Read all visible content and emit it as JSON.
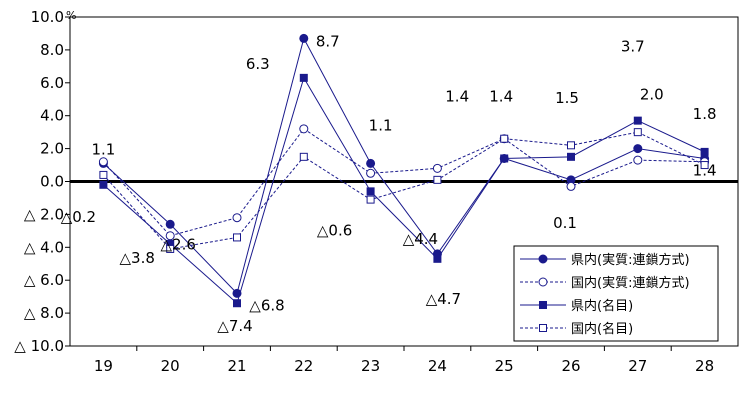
{
  "chart_data": {
    "type": "line",
    "title": "",
    "xlabel": "",
    "ylabel": "",
    "y_unit": "%",
    "categories": [
      "19",
      "20",
      "21",
      "22",
      "23",
      "24",
      "25",
      "26",
      "27",
      "28"
    ],
    "y_ticks": [
      {
        "value": 10,
        "label": "10.0"
      },
      {
        "value": 8,
        "label": "8.0"
      },
      {
        "value": 6,
        "label": "6.0"
      },
      {
        "value": 4,
        "label": "4.0"
      },
      {
        "value": 2,
        "label": "2.0"
      },
      {
        "value": 0,
        "label": "0.0"
      },
      {
        "value": -2,
        "label": "△ 2.0"
      },
      {
        "value": -4,
        "label": "△ 4.0"
      },
      {
        "value": -6,
        "label": "△ 6.0"
      },
      {
        "value": -8,
        "label": "△ 8.0"
      },
      {
        "value": -10,
        "label": "△ 10.0"
      }
    ],
    "ylim": [
      -10,
      10
    ],
    "legend_position": "bottom-right",
    "series": [
      {
        "name": "県内(実質:連鎖方式)",
        "values": [
          1.1,
          -2.6,
          -6.8,
          8.7,
          1.1,
          -4.4,
          1.4,
          0.1,
          2.0,
          1.4
        ],
        "line": "solid",
        "marker": "filled-circle",
        "color": "#1a1a8c"
      },
      {
        "name": "国内(実質:連鎖方式)",
        "values": [
          1.2,
          -3.3,
          -2.2,
          3.2,
          0.5,
          0.8,
          2.6,
          -0.3,
          1.3,
          1.2
        ],
        "line": "dashed",
        "marker": "open-circle",
        "color": "#1a1a8c"
      },
      {
        "name": "県内(名目)",
        "values": [
          -0.2,
          -3.8,
          -7.4,
          6.3,
          -0.6,
          -4.7,
          1.4,
          1.5,
          3.7,
          1.8
        ],
        "line": "solid",
        "marker": "filled-square",
        "color": "#1a1a8c"
      },
      {
        "name": "国内(名目)",
        "values": [
          0.4,
          -4.1,
          -3.4,
          1.5,
          -1.1,
          0.1,
          2.6,
          2.2,
          3.0,
          1.0
        ],
        "line": "dashed",
        "marker": "open-square",
        "color": "#1a1a8c"
      }
    ],
    "annotations": [
      {
        "text": "1.1",
        "category": "19",
        "value": 1.1
      },
      {
        "text": "△0.2",
        "category": "19",
        "value": -0.2
      },
      {
        "text": "△2.6",
        "category": "20",
        "value": -2.6
      },
      {
        "text": "△3.8",
        "category": "20",
        "value": -3.8
      },
      {
        "text": "△6.8",
        "category": "21",
        "value": -6.8
      },
      {
        "text": "△7.4",
        "category": "21",
        "value": -7.4
      },
      {
        "text": "8.7",
        "category": "22",
        "value": 8.7
      },
      {
        "text": "6.3",
        "category": "22",
        "value": 6.3
      },
      {
        "text": "1.1",
        "category": "23",
        "value": 1.1
      },
      {
        "text": "△0.6",
        "category": "23",
        "value": -0.6
      },
      {
        "text": "△4.4",
        "category": "24",
        "value": -4.4
      },
      {
        "text": "△4.7",
        "category": "24",
        "value": -4.7
      },
      {
        "text": "1.4",
        "category": "25",
        "value": 1.4
      },
      {
        "text": "1.4",
        "category": "25",
        "value": 1.4
      },
      {
        "text": "1.5",
        "category": "26",
        "value": 1.5
      },
      {
        "text": "0.1",
        "category": "26",
        "value": 0.1
      },
      {
        "text": "3.7",
        "category": "27",
        "value": 3.7
      },
      {
        "text": "2.0",
        "category": "27",
        "value": 2.0
      },
      {
        "text": "1.8",
        "category": "28",
        "value": 1.8
      },
      {
        "text": "1.4",
        "category": "28",
        "value": 1.4
      }
    ]
  }
}
